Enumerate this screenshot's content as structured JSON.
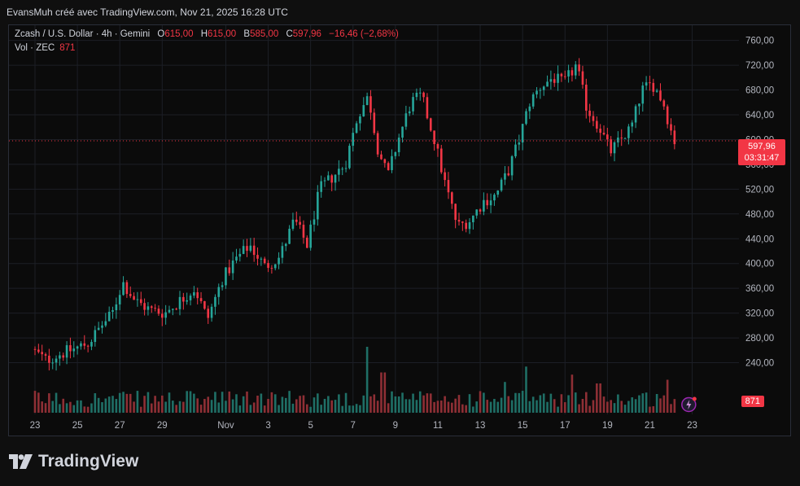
{
  "caption": "EvansMuh créé avec TradingView.com, Nov 21, 2025 16:28 UTC",
  "legend": {
    "symbol": "Zcash / U.S. Dollar · 4h · Gemini",
    "open_label": "O",
    "open": "615,00",
    "high_label": "H",
    "high": "615,00",
    "low_label": "B",
    "low": "585,00",
    "close_label": "C",
    "close": "597,96",
    "change": "−16,46 (−2,68%)",
    "vol_label": "Vol · ZEC",
    "vol_value": "871"
  },
  "price_tag": {
    "price": "597,96",
    "countdown": "03:31:47"
  },
  "volume_tag": "871",
  "brand": "TradingView",
  "colors": {
    "up": "#26a69a",
    "down": "#f23645",
    "volume_up": "#1f6f66",
    "volume_down": "#8e2f35"
  },
  "chart_data": {
    "type": "candlestick",
    "symbol": "ZEC/USD",
    "interval": "4h",
    "ylim": [
      200,
      770
    ],
    "y_ticks": [
      "760,00",
      "720,00",
      "680,00",
      "640,00",
      "600,00",
      "560,00",
      "520,00",
      "480,00",
      "440,00",
      "400,00",
      "360,00",
      "320,00",
      "280,00",
      "240,00"
    ],
    "y_tick_values": [
      760,
      720,
      680,
      640,
      600,
      560,
      520,
      480,
      440,
      400,
      360,
      320,
      280,
      240
    ],
    "x_ticks": [
      "23",
      "25",
      "27",
      "29",
      "Nov",
      "3",
      "5",
      "7",
      "9",
      "11",
      "13",
      "15",
      "17",
      "19",
      "21",
      "23"
    ],
    "x_tick_days": [
      0,
      2,
      4,
      6,
      9,
      11,
      13,
      15,
      17,
      19,
      21,
      23,
      25,
      27,
      29,
      31
    ],
    "last_price": 597.96,
    "daily_path": [
      {
        "day": 0,
        "price": 262
      },
      {
        "day": 0.7,
        "price": 244
      },
      {
        "day": 1.2,
        "price": 252
      },
      {
        "day": 2,
        "price": 262
      },
      {
        "day": 2.7,
        "price": 272
      },
      {
        "day": 3.3,
        "price": 300
      },
      {
        "day": 3.8,
        "price": 318
      },
      {
        "day": 4.3,
        "price": 370
      },
      {
        "day": 4.9,
        "price": 340
      },
      {
        "day": 5.6,
        "price": 325
      },
      {
        "day": 6.3,
        "price": 320
      },
      {
        "day": 7,
        "price": 340
      },
      {
        "day": 7.7,
        "price": 360
      },
      {
        "day": 8.3,
        "price": 310
      },
      {
        "day": 9,
        "price": 375
      },
      {
        "day": 9.6,
        "price": 405
      },
      {
        "day": 10.3,
        "price": 430
      },
      {
        "day": 11,
        "price": 395
      },
      {
        "day": 11.7,
        "price": 410
      },
      {
        "day": 12.4,
        "price": 470
      },
      {
        "day": 13,
        "price": 430
      },
      {
        "day": 13.6,
        "price": 520
      },
      {
        "day": 14.2,
        "price": 540
      },
      {
        "day": 14.8,
        "price": 560
      },
      {
        "day": 15.4,
        "price": 640
      },
      {
        "day": 15.9,
        "price": 670
      },
      {
        "day": 16.3,
        "price": 590
      },
      {
        "day": 16.8,
        "price": 540
      },
      {
        "day": 17.3,
        "price": 600
      },
      {
        "day": 17.9,
        "price": 660
      },
      {
        "day": 18.4,
        "price": 670
      },
      {
        "day": 19,
        "price": 600
      },
      {
        "day": 19.5,
        "price": 530
      },
      {
        "day": 20.1,
        "price": 460
      },
      {
        "day": 20.7,
        "price": 470
      },
      {
        "day": 21.3,
        "price": 500
      },
      {
        "day": 21.9,
        "price": 510
      },
      {
        "day": 22.5,
        "price": 550
      },
      {
        "day": 23,
        "price": 600
      },
      {
        "day": 23.5,
        "price": 660
      },
      {
        "day": 24,
        "price": 685
      },
      {
        "day": 24.6,
        "price": 700
      },
      {
        "day": 25.1,
        "price": 690
      },
      {
        "day": 25.7,
        "price": 720
      },
      {
        "day": 26.2,
        "price": 650
      },
      {
        "day": 26.8,
        "price": 620
      },
      {
        "day": 27.3,
        "price": 580
      },
      {
        "day": 27.8,
        "price": 600
      },
      {
        "day": 28.3,
        "price": 620
      },
      {
        "day": 28.8,
        "price": 680
      },
      {
        "day": 29.3,
        "price": 690
      },
      {
        "day": 29.8,
        "price": 660
      },
      {
        "day": 30.3,
        "price": 598
      }
    ],
    "volume_ylim": [
      0,
      100
    ],
    "volume_peaks": [
      {
        "day": 15.6,
        "value": 90
      },
      {
        "day": 16.4,
        "value": 55
      },
      {
        "day": 23.2,
        "value": 63
      },
      {
        "day": 25.4,
        "value": 52
      },
      {
        "day": 22.2,
        "value": 42
      },
      {
        "day": 26.6,
        "value": 40
      },
      {
        "day": 29.9,
        "value": 45
      }
    ]
  }
}
